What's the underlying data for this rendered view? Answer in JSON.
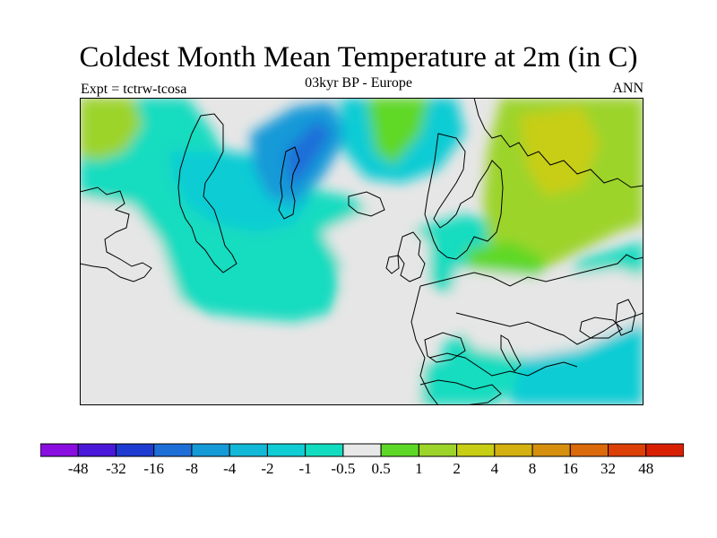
{
  "title": "Coldest Month Mean Temperature at 2m (in C)",
  "subtitle": "03kyr BP - Europe",
  "experiment": "Expt = tctrw-tcosa",
  "season": "ANN",
  "legend": {
    "labels": [
      "-48",
      "-32",
      "-16",
      "-8",
      "-4",
      "-2",
      "-1",
      "-0.5",
      "0.5",
      "1",
      "2",
      "4",
      "8",
      "16",
      "32",
      "48"
    ],
    "colors": [
      "#8a0ee0",
      "#4a18d8",
      "#1e3cd2",
      "#1e6ed8",
      "#159ad8",
      "#12b8d8",
      "#10ccd4",
      "#12dcc0",
      "#e8e8e8",
      "#5ed826",
      "#9cd42a",
      "#c8ce14",
      "#d4b010",
      "#d6900e",
      "#da6a0a",
      "#dc4006",
      "#d82000"
    ]
  },
  "palette": {
    "ocean_neutral": "#e6e6e6",
    "light_teal": "#12dcc0",
    "teal": "#10ccd4",
    "cyan": "#12b8d8",
    "blue": "#159ad8",
    "deep_blue": "#1e6ed8",
    "green": "#5ed826",
    "yellow_green": "#9cd42a",
    "olive": "#c8ce14"
  }
}
